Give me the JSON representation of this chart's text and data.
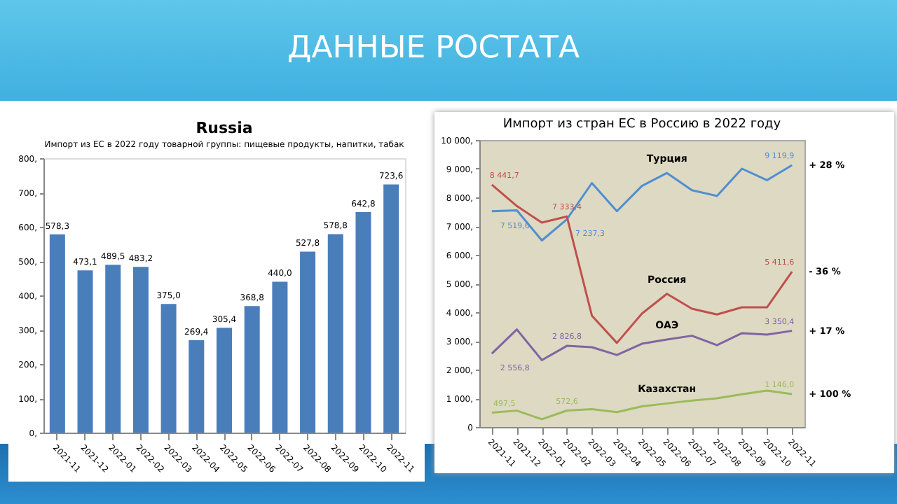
{
  "chart_data": [
    {
      "type": "other",
      "title": "ДАННЫЕ РОСТАТА"
    },
    {
      "type": "bar",
      "title": "Russia",
      "subtitle": "Импорт из ЕС в 2022 году товарной группы: пищевые продукты, напитки, табак",
      "categories": [
        "2021-11",
        "2021-12",
        "2022-01",
        "2022-02",
        "2022-03",
        "2022-04",
        "2022-05",
        "2022-06",
        "2022-07",
        "2022-08",
        "2022-09",
        "2022-10",
        "2022-11"
      ],
      "values": [
        578.3,
        473.1,
        489.5,
        483.2,
        375.0,
        269.4,
        305.4,
        368.8,
        440.0,
        527.8,
        578.8,
        642.8,
        723.6
      ],
      "value_labels": [
        "578,3",
        "473,1",
        "489,5",
        "483,2",
        "375,0",
        "269,4",
        "305,4",
        "368,8",
        "440,0",
        "527,8",
        "578,8",
        "642,8",
        "723,6"
      ],
      "color": "#4a7ebb",
      "ylim": [
        0,
        800
      ],
      "yticks": [
        {
          "value": 0,
          "label": "0,"
        },
        {
          "value": 100,
          "label": "100,"
        },
        {
          "value": 200,
          "label": "200,"
        },
        {
          "value": 300,
          "label": "300,"
        },
        {
          "value": 400,
          "label": "400,"
        },
        {
          "value": 500,
          "label": "500,"
        },
        {
          "value": 600,
          "label": "600,"
        },
        {
          "value": 700,
          "label": "700,"
        },
        {
          "value": 800,
          "label": "800,"
        }
      ],
      "grid": false
    },
    {
      "type": "line",
      "title": "Импорт из стран ЕС в Россию в 2022 году",
      "categories": [
        "2021-11",
        "2021-12",
        "2022-01",
        "2022-02",
        "2022-03",
        "2022-04",
        "2022-05",
        "2022-06",
        "2022-07",
        "2022-08",
        "2022-09",
        "2022-10",
        "2022-11"
      ],
      "series": [
        {
          "name": "Турция",
          "color": "#4f8fd0",
          "values": [
            7519.6,
            7550,
            6500,
            7237.3,
            8500,
            7520,
            8400,
            8850,
            8250,
            8050,
            9000,
            8600,
            9119.9
          ],
          "value_labels": [
            "7 519,6",
            null,
            null,
            "7 237,3",
            null,
            null,
            null,
            null,
            null,
            null,
            null,
            null,
            "9 119,9"
          ]
        },
        {
          "name": "Россия",
          "color": "#c0504d",
          "values": [
            8441.7,
            7700,
            7120,
            7333.4,
            3880,
            2930,
            3950,
            4640,
            4120,
            3920,
            4170,
            4170,
            5411.6
          ],
          "value_labels": [
            "8 441,7",
            null,
            null,
            "7 333,4",
            null,
            null,
            null,
            null,
            null,
            null,
            null,
            null,
            "5 411,6"
          ]
        },
        {
          "name": "ОАЭ",
          "color": "#8064a2",
          "values": [
            2556.8,
            3400,
            2330,
            2826.8,
            2780,
            2510,
            2900,
            3050,
            3180,
            2850,
            3270,
            3220,
            3350.4
          ],
          "value_labels": [
            "2 556,8",
            null,
            null,
            "2 826,8",
            null,
            null,
            null,
            null,
            null,
            null,
            null,
            null,
            "3 350,4"
          ]
        },
        {
          "name": "Казахстан",
          "color": "#9bbb59",
          "values": [
            497.5,
            570,
            270,
            572.6,
            620,
            520,
            720,
            820,
            920,
            1000,
            1140,
            1270,
            1146.0
          ],
          "value_labels": [
            "497,5",
            null,
            null,
            "572,6",
            null,
            null,
            null,
            null,
            null,
            null,
            null,
            null,
            "1 146,0"
          ]
        }
      ],
      "ylim": [
        0,
        10000
      ],
      "yticks": [
        {
          "value": 0,
          "label": "0"
        },
        {
          "value": 1000,
          "label": "1 000,"
        },
        {
          "value": 2000,
          "label": "2 000,"
        },
        {
          "value": 3000,
          "label": "3 000,"
        },
        {
          "value": 4000,
          "label": "4 000,"
        },
        {
          "value": 5000,
          "label": "5 000,"
        },
        {
          "value": 6000,
          "label": "6 000,"
        },
        {
          "value": 7000,
          "label": "7 000,"
        },
        {
          "value": 8000,
          "label": "8 000,"
        },
        {
          "value": 9000,
          "label": "9 000,"
        },
        {
          "value": 10000,
          "label": "10 000,"
        }
      ],
      "grid": false,
      "annotations": [
        "+ 28 %",
        "- 36 %",
        "+ 17 %",
        "+ 100 %"
      ]
    }
  ]
}
